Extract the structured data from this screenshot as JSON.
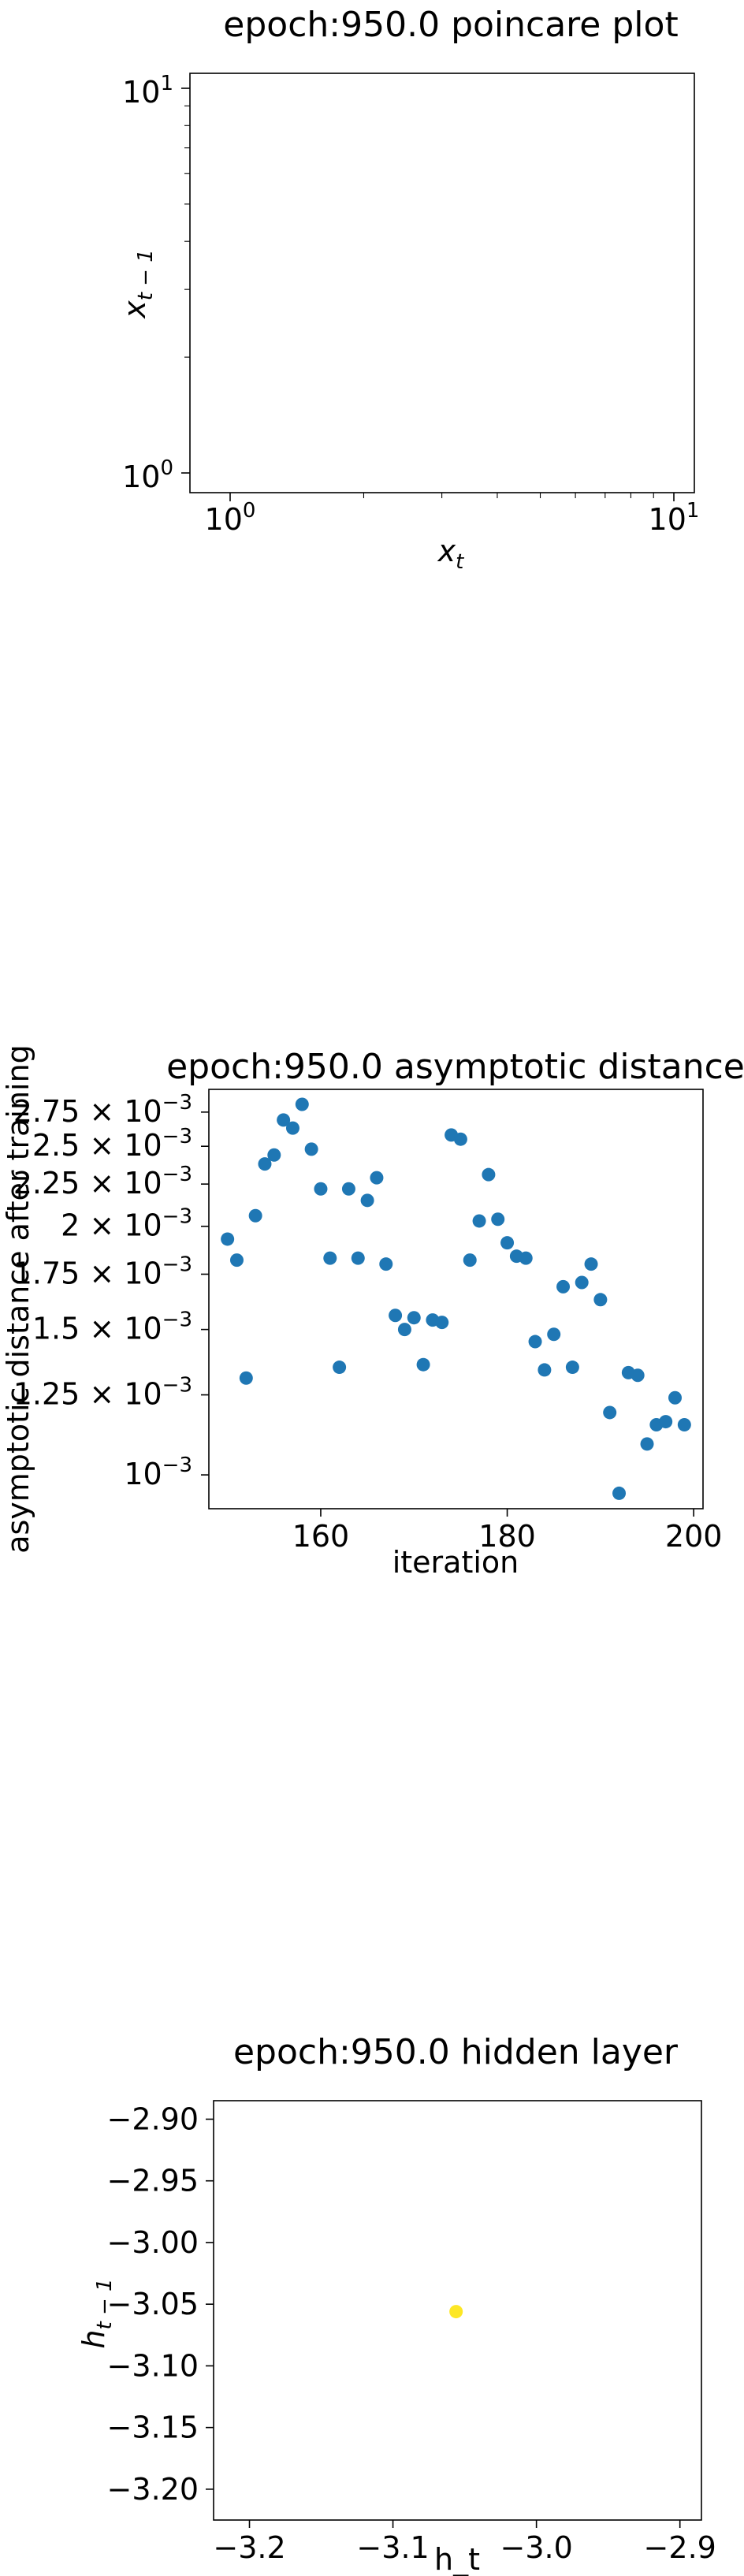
{
  "chart_data": [
    {
      "type": "scatter",
      "title": "epoch:950.0 poincare plot",
      "xlabel_base": "x",
      "xlabel_sub": "t",
      "ylabel_base": "x",
      "ylabel_sub": "t − 1",
      "xscale": "log",
      "yscale": "log",
      "xlim": [
        0.88,
        11.2
      ],
      "ylim": [
        0.88,
        11.2
      ],
      "x_ticks": [
        {
          "base": "10",
          "exp": "0",
          "value": 1
        },
        {
          "base": "10",
          "exp": "1",
          "value": 10
        }
      ],
      "y_ticks": [
        {
          "base": "10",
          "exp": "0",
          "value": 1
        },
        {
          "base": "10",
          "exp": "1",
          "value": 10
        }
      ],
      "points": []
    },
    {
      "type": "scatter",
      "title": "epoch:950.0 asymptotic distance",
      "xlabel": "iteration",
      "ylabel": "asymptotic distance after training",
      "yscale": "log",
      "xlim": [
        148,
        201
      ],
      "ylim": [
        0.00091,
        0.00293
      ],
      "x_ticks": [
        160,
        180,
        200
      ],
      "y_ticks": [
        {
          "value": 0.001,
          "mant": "",
          "exp": "−3"
        },
        {
          "value": 0.00125,
          "mant": "1.25",
          "exp": "−3"
        },
        {
          "value": 0.0015,
          "mant": "1.5",
          "exp": "−3"
        },
        {
          "value": 0.00175,
          "mant": "1.75",
          "exp": "−3"
        },
        {
          "value": 0.002,
          "mant": "2",
          "exp": "−3"
        },
        {
          "value": 0.00225,
          "mant": "2.25",
          "exp": "−3"
        },
        {
          "value": 0.0025,
          "mant": "2.5",
          "exp": "−3"
        },
        {
          "value": 0.00275,
          "mant": "2.75",
          "exp": "−3"
        }
      ],
      "color": "#1f77b4",
      "x": [
        150,
        151,
        152,
        153,
        154,
        155,
        156,
        157,
        158,
        159,
        160,
        161,
        162,
        163,
        164,
        165,
        166,
        167,
        168,
        169,
        170,
        171,
        172,
        173,
        174,
        175,
        176,
        177,
        178,
        179,
        180,
        181,
        182,
        183,
        184,
        185,
        186,
        187,
        188,
        189,
        190,
        191,
        192,
        193,
        194,
        195,
        196,
        197,
        198,
        199
      ],
      "y": [
        0.00193,
        0.00182,
        0.00131,
        0.00206,
        0.00238,
        0.00244,
        0.00269,
        0.00263,
        0.00281,
        0.00248,
        0.00222,
        0.00183,
        0.00135,
        0.00222,
        0.00183,
        0.00215,
        0.00229,
        0.0018,
        0.00156,
        0.0015,
        0.00155,
        0.00136,
        0.00154,
        0.00153,
        0.00258,
        0.00255,
        0.00182,
        0.00203,
        0.00231,
        0.00204,
        0.00191,
        0.00184,
        0.00183,
        0.00145,
        0.00134,
        0.00148,
        0.00169,
        0.00135,
        0.00171,
        0.0018,
        0.00163,
        0.00119,
        0.00095,
        0.00133,
        0.00132,
        0.00109,
        0.00115,
        0.00116,
        0.00124,
        0.00115
      ]
    },
    {
      "type": "scatter",
      "title": "epoch:950.0 hidden layer",
      "xlabel": "h_t",
      "ylabel_base": "h",
      "ylabel_sub": "t − 1",
      "xlim": [
        -3.225,
        -2.885
      ],
      "ylim": [
        -3.225,
        -2.885
      ],
      "x_ticks": [
        "−3.2",
        "−3.1",
        "−3.0",
        "−2.9"
      ],
      "x_tick_values": [
        -3.2,
        -3.1,
        -3.0,
        -2.9
      ],
      "y_ticks": [
        "−2.90",
        "−2.95",
        "−3.00",
        "−3.05",
        "−3.10",
        "−3.15",
        "−3.20"
      ],
      "y_tick_values": [
        -2.9,
        -2.95,
        -3.0,
        -3.05,
        -3.1,
        -3.15,
        -3.2
      ],
      "color": "#fde725",
      "x": [
        -3.056
      ],
      "y": [
        -3.056
      ]
    }
  ]
}
